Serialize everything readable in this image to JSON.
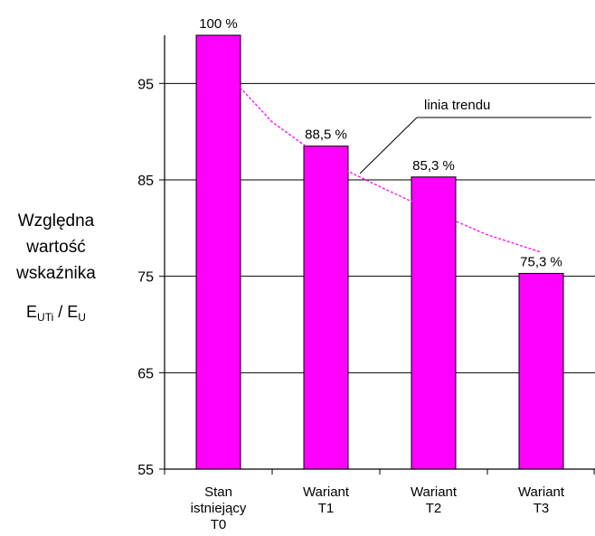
{
  "chart_data": {
    "type": "bar",
    "categories": [
      [
        "Stan",
        "istniejący",
        "T0"
      ],
      [
        "Wariant",
        "T1"
      ],
      [
        "Wariant",
        "T2"
      ],
      [
        "Wariant",
        "T3"
      ]
    ],
    "values": [
      100,
      88.5,
      85.3,
      75.3
    ],
    "data_labels": [
      "100 %",
      "88,5 %",
      "85,3 %",
      "75,3 %"
    ],
    "ylim": [
      55,
      100
    ],
    "yticks": [
      55,
      65,
      75,
      85,
      95
    ],
    "ylabel": {
      "lines": [
        "Względna",
        "wartość",
        "wskaźnika"
      ],
      "ratio": {
        "numerator_base": "E",
        "numerator_sub": "UTi",
        "separator": " / ",
        "denominator_base": "E",
        "denominator_sub": "U"
      }
    },
    "grid": true,
    "bar_color": "#ff00ff",
    "trend_color": "#ff00ff",
    "trend": {
      "annotation": "linia trendu",
      "points": [
        {
          "x": 0.5,
          "y": 97
        },
        {
          "x": 1,
          "y": 91
        },
        {
          "x": 1.5,
          "y": 87
        },
        {
          "x": 2,
          "y": 84.3
        },
        {
          "x": 2.5,
          "y": 81.7
        },
        {
          "x": 3,
          "y": 79.3
        },
        {
          "x": 3.5,
          "y": 77.5
        }
      ]
    }
  }
}
